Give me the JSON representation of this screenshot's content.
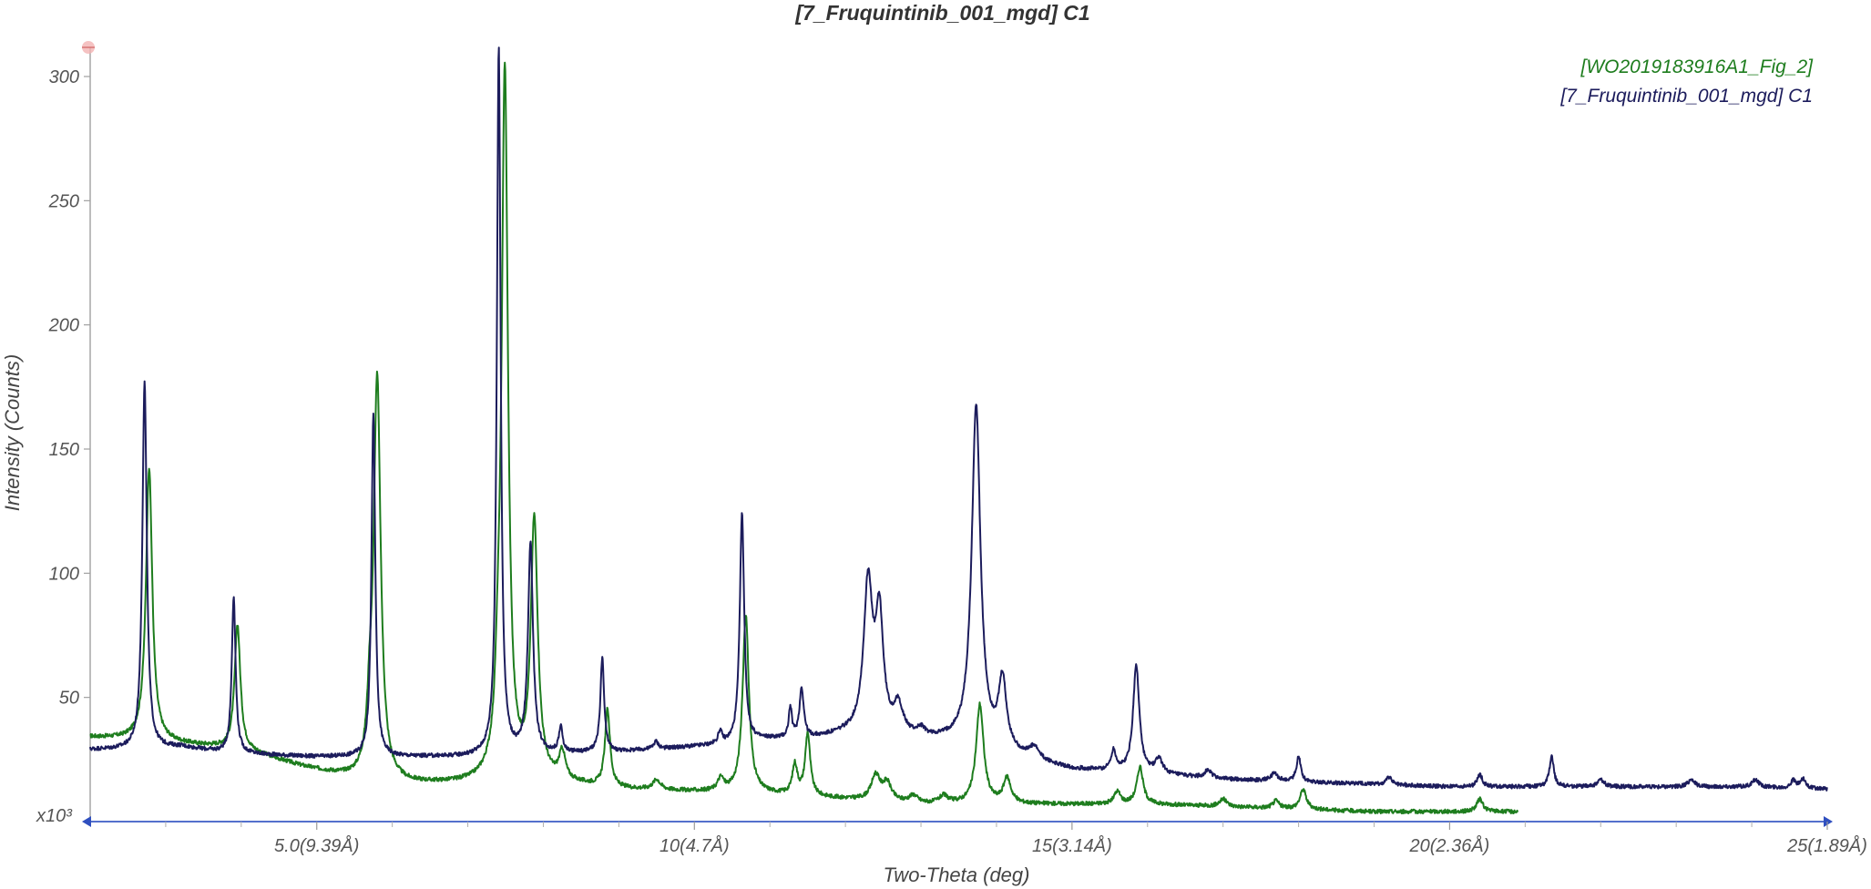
{
  "chart_data": {
    "type": "line",
    "title": "[7_Fruquintinib_001_mgd] C1",
    "xlabel": "Two-Theta (deg)",
    "ylabel": "Intensity (Counts)",
    "y_multiplier_label": "x10³",
    "xlim": [
      2.0,
      25.0
    ],
    "ylim": [
      0,
      320
    ],
    "x_ticks": [
      {
        "value": 5.0,
        "label": "5.0(9.39Å)"
      },
      {
        "value": 10.0,
        "label": "10(4.7Å)"
      },
      {
        "value": 15.0,
        "label": "15(3.14Å)"
      },
      {
        "value": 20.0,
        "label": "20(2.36Å)"
      },
      {
        "value": 25.0,
        "label": "25(1.89Å)"
      }
    ],
    "x_minor_ticks": [
      3,
      4,
      6,
      7,
      8,
      9,
      11,
      12,
      13,
      14,
      16,
      17,
      18,
      19,
      21,
      22,
      23,
      24
    ],
    "y_ticks": [
      {
        "value": 50,
        "label": "50"
      },
      {
        "value": 100,
        "label": "100"
      },
      {
        "value": 150,
        "label": "150"
      },
      {
        "value": 200,
        "label": "200"
      },
      {
        "value": 250,
        "label": "250"
      },
      {
        "value": 300,
        "label": "300"
      }
    ],
    "legend_position": "top-right",
    "series": [
      {
        "name": "[WO2019183916A1_Fig_2]",
        "color": "#1e7d1e",
        "x_range": [
          2.0,
          20.9
        ],
        "baseline": [
          [
            2.0,
            34
          ],
          [
            2.6,
            33
          ],
          [
            3.3,
            31
          ],
          [
            4.0,
            29
          ],
          [
            4.8,
            22
          ],
          [
            5.5,
            17
          ],
          [
            6.2,
            15
          ],
          [
            7.0,
            15
          ],
          [
            8.0,
            16
          ],
          [
            9.0,
            13
          ],
          [
            10.0,
            12
          ],
          [
            11.0,
            11
          ],
          [
            12.0,
            9
          ],
          [
            13.0,
            7
          ],
          [
            14.0,
            7
          ],
          [
            15.0,
            7
          ],
          [
            16.0,
            7
          ],
          [
            17.0,
            6
          ],
          [
            18.0,
            5
          ],
          [
            19.0,
            4
          ],
          [
            20.0,
            4
          ],
          [
            20.9,
            4
          ]
        ],
        "peaks": [
          {
            "x": 2.78,
            "h": 110,
            "w": 0.05
          },
          {
            "x": 3.95,
            "h": 50,
            "w": 0.045
          },
          {
            "x": 5.8,
            "h": 162,
            "w": 0.055
          },
          {
            "x": 5.7,
            "h": 18,
            "w": 0.04
          },
          {
            "x": 7.49,
            "h": 285,
            "w": 0.05
          },
          {
            "x": 7.4,
            "h": 20,
            "w": 0.04
          },
          {
            "x": 7.88,
            "h": 103,
            "w": 0.055
          },
          {
            "x": 8.25,
            "h": 11,
            "w": 0.05
          },
          {
            "x": 8.85,
            "h": 31,
            "w": 0.04
          },
          {
            "x": 9.5,
            "h": 4,
            "w": 0.06
          },
          {
            "x": 10.35,
            "h": 5,
            "w": 0.05
          },
          {
            "x": 10.68,
            "h": 72,
            "w": 0.05
          },
          {
            "x": 11.33,
            "h": 12,
            "w": 0.04
          },
          {
            "x": 11.5,
            "h": 25,
            "w": 0.04
          },
          {
            "x": 12.4,
            "h": 10,
            "w": 0.07
          },
          {
            "x": 12.55,
            "h": 7,
            "w": 0.07
          },
          {
            "x": 12.9,
            "h": 3,
            "w": 0.07
          },
          {
            "x": 13.3,
            "h": 3,
            "w": 0.07
          },
          {
            "x": 13.78,
            "h": 40,
            "w": 0.06
          },
          {
            "x": 14.14,
            "h": 10,
            "w": 0.06
          },
          {
            "x": 15.6,
            "h": 5,
            "w": 0.05
          },
          {
            "x": 15.9,
            "h": 15,
            "w": 0.05
          },
          {
            "x": 17.0,
            "h": 3,
            "w": 0.06
          },
          {
            "x": 17.7,
            "h": 3,
            "w": 0.05
          },
          {
            "x": 18.06,
            "h": 8,
            "w": 0.05
          },
          {
            "x": 20.4,
            "h": 5,
            "w": 0.05
          }
        ]
      },
      {
        "name": "[7_Fruquintinib_001_mgd] C1",
        "color": "#1c1c5c",
        "x_range": [
          2.0,
          25.0
        ],
        "baseline": [
          [
            2.0,
            29
          ],
          [
            2.7,
            29
          ],
          [
            3.2,
            30
          ],
          [
            3.7,
            28
          ],
          [
            4.2,
            27
          ],
          [
            5.0,
            26
          ],
          [
            6.0,
            26
          ],
          [
            7.0,
            26
          ],
          [
            8.0,
            27
          ],
          [
            9.0,
            28
          ],
          [
            10.0,
            30
          ],
          [
            10.5,
            31
          ],
          [
            11.0,
            33
          ],
          [
            11.5,
            33
          ],
          [
            12.0,
            35
          ],
          [
            12.5,
            35
          ],
          [
            13.0,
            33
          ],
          [
            13.5,
            32
          ],
          [
            14.0,
            29
          ],
          [
            14.5,
            24
          ],
          [
            15.0,
            21
          ],
          [
            15.5,
            20
          ],
          [
            16.0,
            19
          ],
          [
            16.5,
            18
          ],
          [
            17.0,
            17
          ],
          [
            18.0,
            16
          ],
          [
            19.0,
            15
          ],
          [
            20.0,
            14
          ],
          [
            21.0,
            14
          ],
          [
            22.0,
            14
          ],
          [
            23.0,
            14
          ],
          [
            24.0,
            14
          ],
          [
            25.0,
            13
          ]
        ],
        "peaks": [
          {
            "x": 2.72,
            "h": 148,
            "w": 0.035
          },
          {
            "x": 3.9,
            "h": 63,
            "w": 0.03
          },
          {
            "x": 5.75,
            "h": 138,
            "w": 0.03
          },
          {
            "x": 7.41,
            "h": 285,
            "w": 0.03
          },
          {
            "x": 7.83,
            "h": 85,
            "w": 0.04
          },
          {
            "x": 8.23,
            "h": 10,
            "w": 0.03
          },
          {
            "x": 8.78,
            "h": 38,
            "w": 0.03
          },
          {
            "x": 9.49,
            "h": 3,
            "w": 0.04
          },
          {
            "x": 10.34,
            "h": 5,
            "w": 0.03
          },
          {
            "x": 10.63,
            "h": 92,
            "w": 0.035
          },
          {
            "x": 11.27,
            "h": 12,
            "w": 0.025
          },
          {
            "x": 11.42,
            "h": 20,
            "w": 0.035
          },
          {
            "x": 12.3,
            "h": 60,
            "w": 0.07
          },
          {
            "x": 12.45,
            "h": 45,
            "w": 0.06
          },
          {
            "x": 12.7,
            "h": 11,
            "w": 0.07
          },
          {
            "x": 13.0,
            "h": 3,
            "w": 0.06
          },
          {
            "x": 13.73,
            "h": 136,
            "w": 0.07
          },
          {
            "x": 14.08,
            "h": 27,
            "w": 0.06
          },
          {
            "x": 14.5,
            "h": 5,
            "w": 0.08
          },
          {
            "x": 15.55,
            "h": 8,
            "w": 0.04
          },
          {
            "x": 15.85,
            "h": 43,
            "w": 0.05
          },
          {
            "x": 16.15,
            "h": 6,
            "w": 0.06
          },
          {
            "x": 16.8,
            "h": 3,
            "w": 0.06
          },
          {
            "x": 17.68,
            "h": 3,
            "w": 0.05
          },
          {
            "x": 18.0,
            "h": 10,
            "w": 0.035
          },
          {
            "x": 19.2,
            "h": 3,
            "w": 0.05
          },
          {
            "x": 20.4,
            "h": 5,
            "w": 0.04
          },
          {
            "x": 21.35,
            "h": 12,
            "w": 0.035
          },
          {
            "x": 22.0,
            "h": 3,
            "w": 0.05
          },
          {
            "x": 23.2,
            "h": 3,
            "w": 0.05
          },
          {
            "x": 24.05,
            "h": 3,
            "w": 0.05
          },
          {
            "x": 24.55,
            "h": 3,
            "w": 0.04
          },
          {
            "x": 24.68,
            "h": 4,
            "w": 0.04
          }
        ]
      }
    ]
  }
}
